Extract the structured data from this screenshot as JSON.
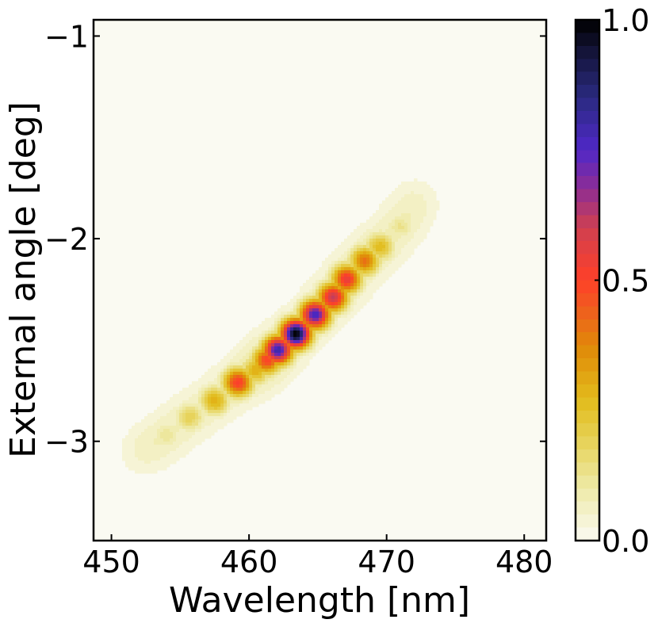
{
  "chart_data": {
    "type": "heatmap",
    "title": "",
    "xlabel": "Wavelength [nm]",
    "ylabel": "External angle [deg]",
    "xlim": [
      448.7,
      481.6
    ],
    "ylim": [
      -3.49,
      -0.92
    ],
    "xticks": [
      450,
      460,
      470,
      480
    ],
    "xtick_labels": [
      "450",
      "460",
      "470",
      "480"
    ],
    "yticks": [
      -1,
      -2,
      -3
    ],
    "ytick_labels": [
      "−1",
      "−2",
      "−3"
    ],
    "grid": false,
    "colorbar": {
      "range": [
        0.0,
        1.0
      ],
      "ticks": [
        0.0,
        0.5,
        1.0
      ],
      "tick_labels": [
        "0.0",
        "0.5",
        "1.0"
      ],
      "colormap_stops": [
        [
          0.0,
          "#fafaf2"
        ],
        [
          0.1,
          "#eeeaa8"
        ],
        [
          0.2,
          "#e6d050"
        ],
        [
          0.27,
          "#e2bc1c"
        ],
        [
          0.37,
          "#e08a08"
        ],
        [
          0.45,
          "#f05a20"
        ],
        [
          0.5,
          "#ff4028"
        ],
        [
          0.6,
          "#d04050"
        ],
        [
          0.68,
          "#8a2c98"
        ],
        [
          0.75,
          "#5028c8"
        ],
        [
          0.85,
          "#2a2a80"
        ],
        [
          0.93,
          "#161640"
        ],
        [
          1.0,
          "#000000"
        ]
      ]
    },
    "peaks": [
      {
        "wavelength": 463.4,
        "angle": -2.47,
        "intensity": 1.0
      },
      {
        "wavelength": 462.1,
        "angle": -2.55,
        "intensity": 0.8
      },
      {
        "wavelength": 464.8,
        "angle": -2.375,
        "intensity": 0.78
      },
      {
        "wavelength": 466.1,
        "angle": -2.29,
        "intensity": 0.62
      },
      {
        "wavelength": 467.1,
        "angle": -2.2,
        "intensity": 0.55
      },
      {
        "wavelength": 468.4,
        "angle": -2.11,
        "intensity": 0.42
      },
      {
        "wavelength": 469.5,
        "angle": -2.04,
        "intensity": 0.27
      },
      {
        "wavelength": 471.0,
        "angle": -1.94,
        "intensity": 0.13
      },
      {
        "wavelength": 472.1,
        "angle": -1.82,
        "intensity": 0.07
      },
      {
        "wavelength": 461.3,
        "angle": -2.6,
        "intensity": 0.5
      },
      {
        "wavelength": 460.5,
        "angle": -2.65,
        "intensity": 0.3
      },
      {
        "wavelength": 459.2,
        "angle": -2.71,
        "intensity": 0.52
      },
      {
        "wavelength": 457.5,
        "angle": -2.8,
        "intensity": 0.3
      },
      {
        "wavelength": 455.7,
        "angle": -2.88,
        "intensity": 0.2
      },
      {
        "wavelength": 454.0,
        "angle": -2.97,
        "intensity": 0.12
      },
      {
        "wavelength": 452.3,
        "angle": -3.05,
        "intensity": 0.07
      }
    ]
  }
}
